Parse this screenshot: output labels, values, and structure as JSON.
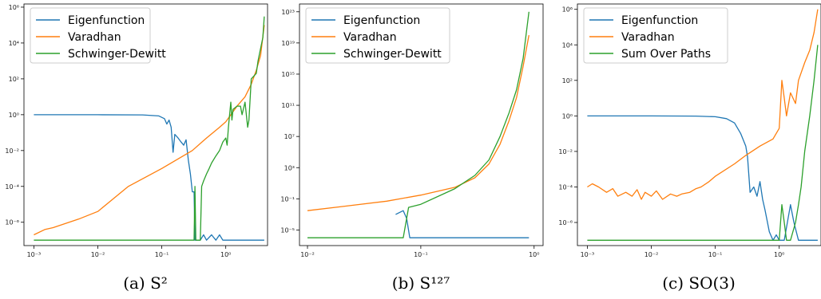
{
  "colors": {
    "blue": "#1f77b4",
    "orange": "#ff7f0e",
    "green": "#2ca02c",
    "legend_border": "#cccccc"
  },
  "chart_data": [
    {
      "type": "line",
      "caption": "(a) S²",
      "xscale": "log",
      "yscale": "log",
      "xlim": [
        0.0007,
        4.5
      ],
      "ylim": [
        5e-08,
        1500000.0
      ],
      "xticks": [
        {
          "v": 0.001,
          "label": "10⁻³"
        },
        {
          "v": 0.01,
          "label": "10⁻²"
        },
        {
          "v": 0.1,
          "label": "10⁻¹"
        },
        {
          "v": 1,
          "label": "10⁰"
        }
      ],
      "yticks": [
        {
          "v": 1e-06,
          "label": "10⁻⁶"
        },
        {
          "v": 0.0001,
          "label": "10⁻⁴"
        },
        {
          "v": 0.01,
          "label": "10⁻²"
        },
        {
          "v": 1,
          "label": "10⁰"
        },
        {
          "v": 100,
          "label": "10²"
        },
        {
          "v": 10000.0,
          "label": "10⁴"
        },
        {
          "v": 1000000.0,
          "label": "10⁶"
        }
      ],
      "legend": "top-left",
      "series": [
        {
          "name": "Eigenfunction",
          "color": "blue",
          "points": [
            [
              0.001,
              1
            ],
            [
              0.01,
              1
            ],
            [
              0.05,
              0.98
            ],
            [
              0.09,
              0.85
            ],
            [
              0.11,
              0.6
            ],
            [
              0.12,
              0.3
            ],
            [
              0.13,
              0.5
            ],
            [
              0.14,
              0.2
            ],
            [
              0.15,
              0.008
            ],
            [
              0.16,
              0.08
            ],
            [
              0.18,
              0.05
            ],
            [
              0.2,
              0.03
            ],
            [
              0.22,
              0.02
            ],
            [
              0.24,
              0.04
            ],
            [
              0.26,
              0.003
            ],
            [
              0.28,
              0.0005
            ],
            [
              0.3,
              5e-05
            ],
            [
              0.32,
              5e-05
            ],
            [
              0.33,
              1e-07
            ],
            [
              0.4,
              1e-07
            ],
            [
              0.45,
              2e-07
            ],
            [
              0.5,
              1e-07
            ],
            [
              0.6,
              2e-07
            ],
            [
              0.7,
              1e-07
            ],
            [
              0.8,
              2e-07
            ],
            [
              0.9,
              1e-07
            ],
            [
              4,
              1e-07
            ]
          ]
        },
        {
          "name": "Varadhan",
          "color": "orange",
          "points": [
            [
              0.001,
              2e-07
            ],
            [
              0.0015,
              4e-07
            ],
            [
              0.002,
              5e-07
            ],
            [
              0.005,
              1.5e-06
            ],
            [
              0.01,
              4e-06
            ],
            [
              0.03,
              0.0001
            ],
            [
              0.1,
              0.001
            ],
            [
              0.3,
              0.01
            ],
            [
              0.5,
              0.05
            ],
            [
              0.8,
              0.2
            ],
            [
              1,
              0.4
            ],
            [
              1.5,
              3
            ],
            [
              2,
              10
            ],
            [
              2.5,
              50
            ],
            [
              3,
              300
            ],
            [
              3.5,
              2000
            ],
            [
              4,
              100000
            ]
          ]
        },
        {
          "name": "Schwinger-Dewitt",
          "color": "green",
          "points": [
            [
              0.001,
              1e-07
            ],
            [
              0.1,
              1e-07
            ],
            [
              0.3,
              1e-07
            ],
            [
              0.32,
              1e-07
            ],
            [
              0.33,
              0.0001
            ],
            [
              0.34,
              1e-07
            ],
            [
              0.4,
              1e-07
            ],
            [
              0.42,
              0.0001
            ],
            [
              0.45,
              0.0002
            ],
            [
              0.5,
              0.0005
            ],
            [
              0.55,
              0.001
            ],
            [
              0.6,
              0.002
            ],
            [
              0.7,
              0.005
            ],
            [
              0.8,
              0.01
            ],
            [
              0.9,
              0.03
            ],
            [
              1,
              0.05
            ],
            [
              1.05,
              0.02
            ],
            [
              1.1,
              0.2
            ],
            [
              1.2,
              5
            ],
            [
              1.25,
              0.5
            ],
            [
              1.3,
              2
            ],
            [
              1.5,
              3
            ],
            [
              1.7,
              3
            ],
            [
              1.8,
              1
            ],
            [
              2,
              5
            ],
            [
              2.2,
              0.2
            ],
            [
              2.3,
              0.5
            ],
            [
              2.5,
              100
            ],
            [
              3,
              200
            ],
            [
              3.2,
              1000
            ],
            [
              3.5,
              5000
            ],
            [
              3.8,
              20000
            ],
            [
              4,
              300000
            ]
          ]
        }
      ]
    },
    {
      "type": "line",
      "caption": "(b) S¹²⁷",
      "xscale": "log",
      "yscale": "log",
      "xlim": [
        0.0085,
        1.2
      ],
      "ylim": [
        1e-07,
        1e+24
      ],
      "xticks": [
        {
          "v": 0.01,
          "label": "10⁻²"
        },
        {
          "v": 0.1,
          "label": "10⁻¹"
        },
        {
          "v": 1,
          "label": "10⁰"
        }
      ],
      "yticks": [
        {
          "v": 1e-05,
          "label": "10⁻⁵"
        },
        {
          "v": 0.1,
          "label": "10⁻¹"
        },
        {
          "v": 1000.0,
          "label": "10³"
        },
        {
          "v": 10000000.0,
          "label": "10⁷"
        },
        {
          "v": 100000000000.0,
          "label": "10¹¹"
        },
        {
          "v": 1000000000000000.0,
          "label": "10¹⁵"
        },
        {
          "v": 1e+19,
          "label": "10¹⁹"
        },
        {
          "v": 1e+23,
          "label": "10²³"
        }
      ],
      "legend": "top-left",
      "series": [
        {
          "name": "Eigenfunction",
          "color": "blue",
          "points": [
            [
              0.06,
              0.001
            ],
            [
              0.07,
              0.003
            ],
            [
              0.075,
              0.0003
            ],
            [
              0.08,
              1e-06
            ],
            [
              0.9,
              1e-06
            ]
          ]
        },
        {
          "name": "Varadhan",
          "color": "orange",
          "points": [
            [
              0.01,
              0.003
            ],
            [
              0.02,
              0.01
            ],
            [
              0.05,
              0.05
            ],
            [
              0.1,
              0.3
            ],
            [
              0.2,
              3
            ],
            [
              0.3,
              50
            ],
            [
              0.4,
              3000
            ],
            [
              0.5,
              1000000.0
            ],
            [
              0.6,
              1000000000.0
            ],
            [
              0.7,
              1000000000000.0
            ],
            [
              0.8,
              1e+16
            ],
            [
              0.9,
              1e+20
            ]
          ]
        },
        {
          "name": "Schwinger-Dewitt",
          "color": "green",
          "points": [
            [
              0.01,
              1e-06
            ],
            [
              0.07,
              1e-06
            ],
            [
              0.078,
              0.008
            ],
            [
              0.1,
              0.02
            ],
            [
              0.2,
              2
            ],
            [
              0.3,
              100
            ],
            [
              0.4,
              10000
            ],
            [
              0.5,
              10000000.0
            ],
            [
              0.6,
              10000000000.0
            ],
            [
              0.7,
              10000000000000.0
            ],
            [
              0.8,
              1e+17
            ],
            [
              0.9,
              1e+23
            ]
          ]
        }
      ]
    },
    {
      "type": "line",
      "caption": "(c) SO(3)",
      "xscale": "log",
      "yscale": "log",
      "xlim": [
        0.0007,
        4.5
      ],
      "ylim": [
        5e-08,
        2000000.0
      ],
      "xticks": [
        {
          "v": 0.001,
          "label": "10⁻³"
        },
        {
          "v": 0.01,
          "label": "10⁻²"
        },
        {
          "v": 0.1,
          "label": "10⁻¹"
        },
        {
          "v": 1,
          "label": "10⁰"
        }
      ],
      "yticks": [
        {
          "v": 1e-06,
          "label": "10⁻⁶"
        },
        {
          "v": 0.0001,
          "label": "10⁻⁴"
        },
        {
          "v": 0.01,
          "label": "10⁻²"
        },
        {
          "v": 1,
          "label": "10⁰"
        },
        {
          "v": 100,
          "label": "10²"
        },
        {
          "v": 10000.0,
          "label": "10⁴"
        },
        {
          "v": 1000000.0,
          "label": "10⁶"
        }
      ],
      "legend": "top-left",
      "series": [
        {
          "name": "Eigenfunction",
          "color": "blue",
          "points": [
            [
              0.001,
              1
            ],
            [
              0.01,
              1
            ],
            [
              0.05,
              0.98
            ],
            [
              0.1,
              0.9
            ],
            [
              0.15,
              0.7
            ],
            [
              0.2,
              0.4
            ],
            [
              0.25,
              0.1
            ],
            [
              0.3,
              0.02
            ],
            [
              0.32,
              0.005
            ],
            [
              0.35,
              5e-05
            ],
            [
              0.4,
              0.0001
            ],
            [
              0.45,
              3e-05
            ],
            [
              0.5,
              0.0002
            ],
            [
              0.55,
              2e-05
            ],
            [
              0.6,
              5e-06
            ],
            [
              0.7,
              3e-07
            ],
            [
              0.8,
              1e-07
            ],
            [
              0.9,
              2e-07
            ],
            [
              1,
              1e-07
            ],
            [
              1.2,
              1e-07
            ],
            [
              1.5,
              1e-05
            ],
            [
              1.7,
              1e-06
            ],
            [
              2,
              1e-07
            ],
            [
              4,
              1e-07
            ]
          ]
        },
        {
          "name": "Varadhan",
          "color": "orange",
          "points": [
            [
              0.001,
              0.0001
            ],
            [
              0.0012,
              0.00015
            ],
            [
              0.0015,
              0.0001
            ],
            [
              0.002,
              5e-05
            ],
            [
              0.0025,
              8e-05
            ],
            [
              0.003,
              3e-05
            ],
            [
              0.004,
              5e-05
            ],
            [
              0.005,
              3e-05
            ],
            [
              0.006,
              7e-05
            ],
            [
              0.007,
              2e-05
            ],
            [
              0.008,
              5e-05
            ],
            [
              0.01,
              3e-05
            ],
            [
              0.012,
              6e-05
            ],
            [
              0.015,
              2e-05
            ],
            [
              0.02,
              4e-05
            ],
            [
              0.025,
              3e-05
            ],
            [
              0.03,
              4e-05
            ],
            [
              0.04,
              5e-05
            ],
            [
              0.05,
              8e-05
            ],
            [
              0.06,
              0.0001
            ],
            [
              0.08,
              0.0002
            ],
            [
              0.1,
              0.0004
            ],
            [
              0.2,
              0.002
            ],
            [
              0.3,
              0.006
            ],
            [
              0.5,
              0.02
            ],
            [
              0.8,
              0.05
            ],
            [
              1,
              0.2
            ],
            [
              1.1,
              100
            ],
            [
              1.2,
              10
            ],
            [
              1.3,
              1
            ],
            [
              1.5,
              20
            ],
            [
              1.8,
              5
            ],
            [
              2,
              100
            ],
            [
              2.5,
              1000
            ],
            [
              3,
              5000
            ],
            [
              3.5,
              50000
            ],
            [
              4,
              1000000
            ]
          ]
        },
        {
          "name": "Sum Over Paths",
          "color": "green",
          "points": [
            [
              0.001,
              1e-07
            ],
            [
              1,
              1e-07
            ],
            [
              1.1,
              1e-05
            ],
            [
              1.2,
              1e-06
            ],
            [
              1.3,
              1e-07
            ],
            [
              1.5,
              1e-07
            ],
            [
              1.8,
              1e-06
            ],
            [
              2,
              1e-05
            ],
            [
              2.2,
              0.0001
            ],
            [
              2.5,
              0.01
            ],
            [
              3,
              1
            ],
            [
              3.5,
              100
            ],
            [
              4,
              10000
            ]
          ]
        }
      ]
    }
  ]
}
